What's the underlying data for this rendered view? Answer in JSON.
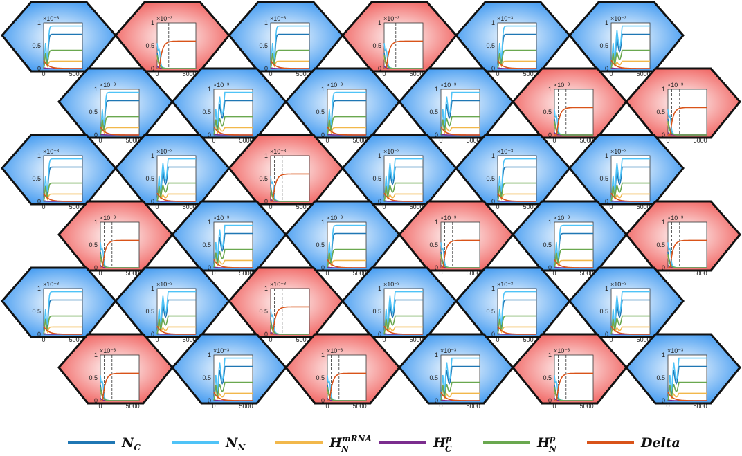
{
  "chart_data": {
    "type": "line",
    "layout": "hexagonal grid of 6 rows x 6 cells, each cell containing a small time-series inset",
    "colors": {
      "high_delta_cell": "#ef5350",
      "low_delta_cell": "#2d8fef",
      "N_C": "#1f77b4",
      "N_N": "#4fc3f7",
      "H_N_mRNA": "#f2b84b",
      "H_C_p": "#7b2d8e",
      "H_N_p": "#6aa84f",
      "Delta": "#d95319"
    },
    "cell_states": [
      [
        "low",
        "high",
        "low",
        "high",
        "low",
        "low"
      ],
      [
        "low",
        "low",
        "low",
        "low",
        "high",
        "high"
      ],
      [
        "low",
        "low",
        "high",
        "low",
        "low",
        "low"
      ],
      [
        "high",
        "low",
        "low",
        "high",
        "low",
        "high"
      ],
      [
        "low",
        "low",
        "high",
        "low",
        "low",
        "low"
      ],
      [
        "high",
        "low",
        "high",
        "low",
        "high",
        "low"
      ]
    ],
    "inset_axes": {
      "x_ticks": [
        "0",
        "5000"
      ],
      "y_ticks": [
        "0",
        "0.5",
        "1"
      ],
      "y_scale_label": "×10⁻³",
      "xlim": [
        0,
        6000
      ],
      "ylim": [
        0,
        1
      ]
    },
    "low_state_levels": {
      "N_C": 0.75,
      "N_N": 0.93,
      "H_N_p": 0.4,
      "H_N_mRNA": 0.16,
      "H_C_p": 0.0,
      "Delta": 0.0
    },
    "high_state_levels": {
      "N_C": 0.0,
      "N_N": 0.0,
      "H_N_p": 0.0,
      "H_N_mRNA": 0.0,
      "H_C_p": 0.0,
      "Delta": 0.6
    },
    "legend": [
      {
        "key": "N_C",
        "base": "N",
        "sub": "C",
        "sup": ""
      },
      {
        "key": "N_N",
        "base": "N",
        "sub": "N",
        "sup": ""
      },
      {
        "key": "H_N_mRNA",
        "base": "H",
        "sub": "N",
        "sup": "mRNA"
      },
      {
        "key": "H_C_p",
        "base": "H",
        "sub": "C",
        "sup": "p"
      },
      {
        "key": "H_N_p",
        "base": "H",
        "sub": "N",
        "sup": "p"
      },
      {
        "key": "Delta",
        "base": "Delta",
        "sub": "",
        "sup": ""
      }
    ]
  }
}
